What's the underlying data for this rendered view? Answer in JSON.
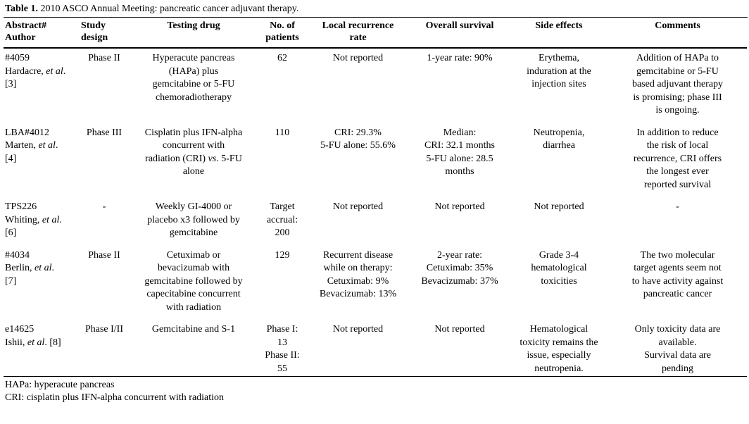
{
  "title": {
    "label": "Table 1.",
    "text": " 2010 ASCO Annual Meeting: pancreatic cancer adjuvant therapy."
  },
  "table": {
    "columns": [
      {
        "key": "abstract-author",
        "label": "Abstract#\nAuthor",
        "header_align": "left",
        "body_align": "left"
      },
      {
        "key": "study-design",
        "label": "Study\ndesign",
        "header_align": "left",
        "body_align": "center"
      },
      {
        "key": "testing-drug",
        "label": "Testing drug",
        "header_align": "center",
        "body_align": "center"
      },
      {
        "key": "no-of-patients",
        "label": "No. of\npatients",
        "header_align": "center",
        "body_align": "center"
      },
      {
        "key": "local-recurrence-rate",
        "label": "Local recurrence\nrate",
        "header_align": "center",
        "body_align": "center"
      },
      {
        "key": "overall-survival",
        "label": "Overall survival",
        "header_align": "center",
        "body_align": "center"
      },
      {
        "key": "side-effects",
        "label": "Side effects",
        "header_align": "center",
        "body_align": "center"
      },
      {
        "key": "comments",
        "label": "Comments",
        "header_align": "center",
        "body_align": "center"
      }
    ],
    "rows": [
      {
        "cells": [
          [
            "#4059\nHardacre, ",
            {
              "i": "et al"
            },
            ".\n[3]"
          ],
          [
            "Phase II"
          ],
          [
            "Hyperacute pancreas\n(HAPa) plus\ngemcitabine or 5-FU\nchemoradiotherapy"
          ],
          [
            "62"
          ],
          [
            "Not reported"
          ],
          [
            "1-year rate: 90%"
          ],
          [
            "Erythema,\ninduration at the\ninjection sites"
          ],
          [
            "Addition of HAPa to\ngemcitabine or 5-FU\nbased adjuvant therapy\nis promising; phase III\nis ongoing."
          ]
        ]
      },
      {
        "cells": [
          [
            "LBA#4012\nMarten, ",
            {
              "i": "et al"
            },
            ".\n[4]"
          ],
          [
            "Phase III"
          ],
          [
            "Cisplatin plus IFN-alpha\nconcurrent with\nradiation (CRI) ",
            {
              "i": "vs"
            },
            ". 5-FU\nalone"
          ],
          [
            "110"
          ],
          [
            "CRI: 29.3%\n5-FU alone: 55.6%"
          ],
          [
            "Median:\nCRI: 32.1 months\n5-FU alone: 28.5\nmonths"
          ],
          [
            "Neutropenia,\ndiarrhea"
          ],
          [
            "In addition to reduce\nthe risk of local\nrecurrence, CRI offers\nthe longest ever\nreported survival"
          ]
        ]
      },
      {
        "cells": [
          [
            "TPS226\nWhiting, ",
            {
              "i": "et al"
            },
            ".\n[6]"
          ],
          [
            "-"
          ],
          [
            "Weekly GI-4000 or\nplacebo x3 followed by\ngemcitabine"
          ],
          [
            "Target\naccrual:\n200"
          ],
          [
            "Not reported"
          ],
          [
            "Not reported"
          ],
          [
            "Not reported"
          ],
          [
            "-"
          ]
        ]
      },
      {
        "cells": [
          [
            "#4034\nBerlin, ",
            {
              "i": "et al"
            },
            ".\n[7]"
          ],
          [
            "Phase II"
          ],
          [
            "Cetuximab or\nbevacizumab with\ngemcitabine followed by\ncapecitabine concurrent\nwith radiation"
          ],
          [
            "129"
          ],
          [
            "Recurrent disease\nwhile on therapy:\nCetuximab: 9%\nBevacizumab: 13%"
          ],
          [
            "2-year rate:\nCetuximab: 35%\nBevacizumab: 37%"
          ],
          [
            "Grade 3-4\nhematological\ntoxicities"
          ],
          [
            "The two molecular\ntarget agents seem not\nto have activity against\npancreatic cancer"
          ]
        ]
      },
      {
        "cells": [
          [
            "e14625\nIshii, ",
            {
              "i": "et al"
            },
            ". [8]"
          ],
          [
            "Phase I/II"
          ],
          [
            "Gemcitabine and S-1"
          ],
          [
            "Phase I: 13\nPhase II: 55"
          ],
          [
            "Not reported"
          ],
          [
            "Not reported"
          ],
          [
            "Hematological\ntoxicity remains the\nissue, especially\nneutropenia."
          ],
          [
            "Only toxicity data are\navailable.\nSurvival data are\npending"
          ]
        ]
      }
    ]
  },
  "footnotes": [
    "HAPa: hyperacute pancreas",
    "CRI: cisplatin plus IFN-alpha concurrent with radiation"
  ]
}
